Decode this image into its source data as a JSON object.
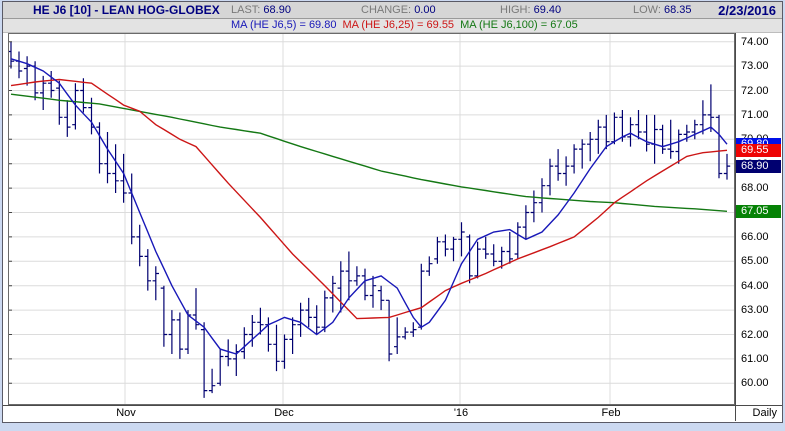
{
  "header": {
    "title": "HE J6 [10] - LEAN HOG-GLOBEX",
    "stats": [
      {
        "label": "LAST:",
        "value": "68.90"
      },
      {
        "label": "CHANGE:",
        "value": "0.00"
      },
      {
        "label": "HIGH:",
        "value": "69.40"
      },
      {
        "label": "LOW:",
        "value": "68.35"
      }
    ],
    "date": "2/23/2016"
  },
  "legend": [
    {
      "label": "MA (HE J6,5) = 69.80",
      "color": "#1818b8"
    },
    {
      "label": "MA (HE J6,25) = 69.55",
      "color": "#cc1616"
    },
    {
      "label": "MA (HE J6,100) = 67.05",
      "color": "#147814"
    }
  ],
  "y_axis": {
    "labels": [
      "74.00",
      "73.00",
      "72.00",
      "71.00",
      "70.00",
      "69.00",
      "68.00",
      "67.00",
      "66.00",
      "65.00",
      "64.00",
      "63.00",
      "62.00",
      "61.00",
      "60.00"
    ],
    "values": [
      74,
      73,
      72,
      71,
      70,
      69,
      68,
      67,
      66,
      65,
      64,
      63,
      62,
      61,
      60
    ]
  },
  "price_badges": [
    {
      "text": "69.80",
      "price": 69.8,
      "bg": "#0010e8",
      "z": 1
    },
    {
      "text": "69.55",
      "price": 69.55,
      "bg": "#ee0404",
      "z": 3
    },
    {
      "text": "68.90",
      "price": 68.9,
      "bg": "#000070",
      "z": 2
    },
    {
      "text": "67.05",
      "price": 67.05,
      "bg": "#058205",
      "z": 2
    }
  ],
  "x_axis": {
    "months": [
      {
        "label": "Nov",
        "x": 125
      },
      {
        "label": "Dec",
        "x": 283
      },
      {
        "label": "'16",
        "x": 460
      },
      {
        "label": "Feb",
        "x": 610
      }
    ],
    "daily_label": "Daily"
  },
  "chart_data": {
    "type": "ohlc-bar",
    "title": "HE J6 [10] - LEAN HOG-GLOBEX",
    "timeframe": "Daily",
    "last": 68.9,
    "change": 0.0,
    "high": 69.4,
    "low": 68.35,
    "date": "2/23/2016",
    "ylim": [
      59.1,
      74.36
    ],
    "y_ticks": [
      60,
      61,
      62,
      63,
      64,
      65,
      66,
      67,
      68,
      69,
      70,
      71,
      72,
      73,
      74
    ],
    "month_gridlines_x": [
      125,
      283,
      460,
      610
    ],
    "grid": true,
    "colors": {
      "bar": "#000070",
      "ma5": "#1818b8",
      "ma25": "#cc1616",
      "ma100": "#147814",
      "grid": "#dcdcdc",
      "frame": "#6a6a6a",
      "plot_bg": "#ffffff",
      "page_bg": "#ccd9f1"
    },
    "bars_ohlc": [
      [
        73.6,
        74.0,
        72.9,
        73.2
      ],
      [
        73.2,
        73.6,
        72.5,
        72.8
      ],
      [
        72.9,
        73.4,
        72.2,
        73.0
      ],
      [
        73.0,
        73.2,
        71.6,
        71.9
      ],
      [
        71.9,
        72.6,
        71.2,
        72.3
      ],
      [
        72.3,
        72.8,
        71.7,
        72.0
      ],
      [
        72.1,
        72.4,
        70.6,
        70.9
      ],
      [
        70.9,
        71.6,
        70.1,
        70.5
      ],
      [
        70.6,
        72.3,
        70.4,
        72.0
      ],
      [
        72.0,
        72.5,
        71.1,
        71.3
      ],
      [
        71.3,
        71.7,
        70.2,
        70.5
      ],
      [
        70.5,
        70.7,
        68.6,
        69.0
      ],
      [
        69.0,
        70.3,
        68.2,
        68.6
      ],
      [
        68.6,
        69.8,
        67.8,
        68.3
      ],
      [
        68.3,
        69.4,
        67.4,
        67.8
      ],
      [
        67.8,
        68.6,
        65.7,
        66.0
      ],
      [
        66.0,
        66.5,
        64.8,
        65.2
      ],
      [
        65.2,
        65.5,
        63.8,
        64.2
      ],
      [
        64.2,
        64.8,
        63.4,
        64.5
      ],
      [
        63.9,
        64.0,
        61.5,
        62.0
      ],
      [
        62.0,
        63.0,
        61.2,
        62.6
      ],
      [
        62.6,
        62.9,
        61.0,
        61.4
      ],
      [
        61.4,
        63.0,
        61.2,
        62.8
      ],
      [
        62.8,
        63.9,
        62.2,
        62.4
      ],
      [
        62.2,
        62.5,
        59.4,
        59.7
      ],
      [
        59.7,
        60.6,
        59.6,
        59.9
      ],
      [
        60.0,
        61.4,
        59.9,
        61.1
      ],
      [
        61.1,
        61.8,
        60.7,
        61.0
      ],
      [
        61.0,
        61.6,
        60.3,
        61.3
      ],
      [
        61.3,
        62.3,
        61.0,
        62.0
      ],
      [
        62.0,
        62.8,
        61.5,
        62.5
      ],
      [
        62.5,
        63.1,
        62.0,
        62.4
      ],
      [
        62.4,
        62.7,
        61.3,
        61.6
      ],
      [
        61.6,
        62.4,
        60.5,
        60.9
      ],
      [
        60.9,
        62.0,
        60.6,
        61.8
      ],
      [
        61.8,
        62.7,
        61.2,
        62.4
      ],
      [
        62.4,
        63.3,
        61.9,
        63.0
      ],
      [
        63.0,
        63.5,
        62.3,
        62.7
      ],
      [
        62.7,
        63.2,
        62.0,
        62.3
      ],
      [
        62.3,
        63.8,
        62.1,
        63.5
      ],
      [
        63.5,
        64.4,
        62.9,
        64.1
      ],
      [
        63.9,
        65.0,
        62.9,
        64.6
      ],
      [
        64.6,
        65.4,
        63.4,
        64.2
      ],
      [
        64.2,
        64.8,
        64.0,
        64.4
      ],
      [
        64.4,
        64.7,
        63.4,
        63.6
      ],
      [
        63.6,
        64.4,
        63.1,
        64.0
      ],
      [
        63.8,
        64.0,
        63.0,
        63.4
      ],
      [
        63.4,
        63.4,
        60.9,
        61.2
      ],
      [
        61.5,
        62.7,
        61.2,
        61.9
      ],
      [
        61.9,
        62.3,
        61.8,
        62.1
      ],
      [
        62.1,
        62.5,
        61.9,
        62.2
      ],
      [
        62.3,
        64.9,
        62.2,
        64.6
      ],
      [
        64.6,
        65.2,
        64.4,
        64.9
      ],
      [
        65.1,
        66.0,
        64.9,
        65.8
      ],
      [
        65.8,
        66.1,
        65.2,
        65.5
      ],
      [
        65.5,
        66.0,
        65.0,
        65.9
      ],
      [
        65.9,
        66.6,
        65.2,
        66.2
      ],
      [
        66.0,
        66.1,
        64.1,
        64.4
      ],
      [
        64.4,
        65.8,
        64.3,
        65.5
      ],
      [
        65.5,
        66.0,
        65.1,
        65.3
      ],
      [
        65.3,
        65.7,
        64.8,
        65.0
      ],
      [
        65.0,
        65.6,
        64.7,
        65.4
      ],
      [
        65.4,
        66.2,
        64.9,
        65.1
      ],
      [
        65.3,
        66.6,
        65.1,
        66.4
      ],
      [
        66.4,
        67.3,
        65.9,
        67.0
      ],
      [
        67.0,
        67.9,
        66.6,
        67.4
      ],
      [
        67.4,
        68.4,
        67.0,
        68.1
      ],
      [
        68.1,
        69.2,
        67.7,
        68.9
      ],
      [
        68.9,
        69.6,
        68.3,
        68.6
      ],
      [
        68.6,
        69.3,
        68.1,
        68.9
      ],
      [
        68.9,
        69.8,
        68.6,
        69.6
      ],
      [
        69.6,
        70.0,
        68.8,
        69.8
      ],
      [
        69.8,
        70.3,
        69.1,
        70.0
      ],
      [
        70.0,
        70.8,
        69.4,
        70.5
      ],
      [
        70.5,
        71.0,
        69.6,
        69.9
      ],
      [
        69.9,
        71.1,
        69.8,
        70.9
      ],
      [
        70.9,
        71.2,
        69.9,
        70.1
      ],
      [
        70.1,
        70.9,
        69.7,
        70.6
      ],
      [
        70.6,
        71.2,
        70.0,
        70.3
      ],
      [
        70.3,
        71.0,
        69.5,
        69.8
      ],
      [
        69.8,
        71.0,
        69.0,
        70.4
      ],
      [
        70.4,
        70.6,
        69.4,
        69.6
      ],
      [
        69.6,
        70.8,
        69.2,
        69.5
      ],
      [
        69.5,
        70.4,
        69.0,
        70.2
      ],
      [
        70.2,
        70.6,
        69.9,
        70.3
      ],
      [
        70.3,
        70.8,
        70.0,
        70.6
      ],
      [
        70.6,
        71.6,
        70.2,
        71.0
      ],
      [
        71.0,
        72.25,
        70.3,
        70.9
      ],
      [
        70.9,
        71.0,
        68.4,
        68.6
      ],
      [
        68.6,
        69.4,
        68.35,
        68.9
      ]
    ],
    "series": [
      {
        "name": "MA (HE J6,5)",
        "final": 69.8,
        "points": [
          [
            0,
            73.3
          ],
          [
            2,
            73.1
          ],
          [
            4,
            72.8
          ],
          [
            6,
            72.3
          ],
          [
            8,
            71.4
          ],
          [
            10,
            70.7
          ],
          [
            12,
            69.6
          ],
          [
            14,
            68.6
          ],
          [
            16,
            67.0
          ],
          [
            18,
            65.4
          ],
          [
            20,
            64.0
          ],
          [
            22,
            62.8
          ],
          [
            24,
            62.3
          ],
          [
            26,
            61.4
          ],
          [
            28,
            61.2
          ],
          [
            30,
            61.8
          ],
          [
            32,
            62.4
          ],
          [
            34,
            62.7
          ],
          [
            36,
            62.5
          ],
          [
            38,
            62.0
          ],
          [
            40,
            62.5
          ],
          [
            42,
            63.5
          ],
          [
            44,
            64.2
          ],
          [
            46,
            64.4
          ],
          [
            48,
            63.9
          ],
          [
            50,
            62.7
          ],
          [
            51,
            62.3
          ],
          [
            52,
            62.5
          ],
          [
            54,
            63.4
          ],
          [
            56,
            64.9
          ],
          [
            58,
            65.9
          ],
          [
            60,
            66.2
          ],
          [
            62,
            66.3
          ],
          [
            64,
            65.9
          ],
          [
            66,
            66.2
          ],
          [
            68,
            66.9
          ],
          [
            70,
            67.8
          ],
          [
            72,
            68.8
          ],
          [
            74,
            69.7
          ],
          [
            76,
            70.1
          ],
          [
            77,
            70.25
          ],
          [
            79,
            69.9
          ],
          [
            81,
            69.7
          ],
          [
            83,
            69.9
          ],
          [
            85,
            70.2
          ],
          [
            87,
            70.5
          ],
          [
            88,
            70.2
          ],
          [
            89,
            69.8
          ]
        ]
      },
      {
        "name": "MA (HE J6,25)",
        "final": 69.55,
        "points": [
          [
            0,
            72.2
          ],
          [
            3,
            72.35
          ],
          [
            6,
            72.45
          ],
          [
            10,
            72.3
          ],
          [
            14,
            71.4
          ],
          [
            16,
            71.15
          ],
          [
            18,
            70.6
          ],
          [
            21,
            70.0
          ],
          [
            23,
            69.7
          ],
          [
            27,
            68.2
          ],
          [
            31,
            66.8
          ],
          [
            35,
            65.3
          ],
          [
            39,
            64.0
          ],
          [
            43,
            62.65
          ],
          [
            47,
            62.7
          ],
          [
            51,
            63.1
          ],
          [
            54,
            63.8
          ],
          [
            56,
            64.1
          ],
          [
            59,
            64.5
          ],
          [
            63,
            65.1
          ],
          [
            67,
            65.6
          ],
          [
            70,
            66.0
          ],
          [
            73,
            66.8
          ],
          [
            75,
            67.4
          ],
          [
            79,
            68.3
          ],
          [
            82,
            68.9
          ],
          [
            84,
            69.3
          ],
          [
            86,
            69.45
          ],
          [
            89,
            69.55
          ]
        ]
      },
      {
        "name": "MA (HE J6,100)",
        "final": 67.05,
        "points": [
          [
            0,
            71.85
          ],
          [
            6,
            71.6
          ],
          [
            11,
            71.45
          ],
          [
            20,
            70.9
          ],
          [
            26,
            70.5
          ],
          [
            31,
            70.25
          ],
          [
            36,
            69.7
          ],
          [
            41,
            69.2
          ],
          [
            46,
            68.7
          ],
          [
            51,
            68.35
          ],
          [
            56,
            68.05
          ],
          [
            60,
            67.85
          ],
          [
            64,
            67.65
          ],
          [
            68,
            67.55
          ],
          [
            72,
            67.45
          ],
          [
            75,
            67.4
          ],
          [
            80,
            67.25
          ],
          [
            85,
            67.15
          ],
          [
            89,
            67.05
          ]
        ]
      }
    ]
  }
}
